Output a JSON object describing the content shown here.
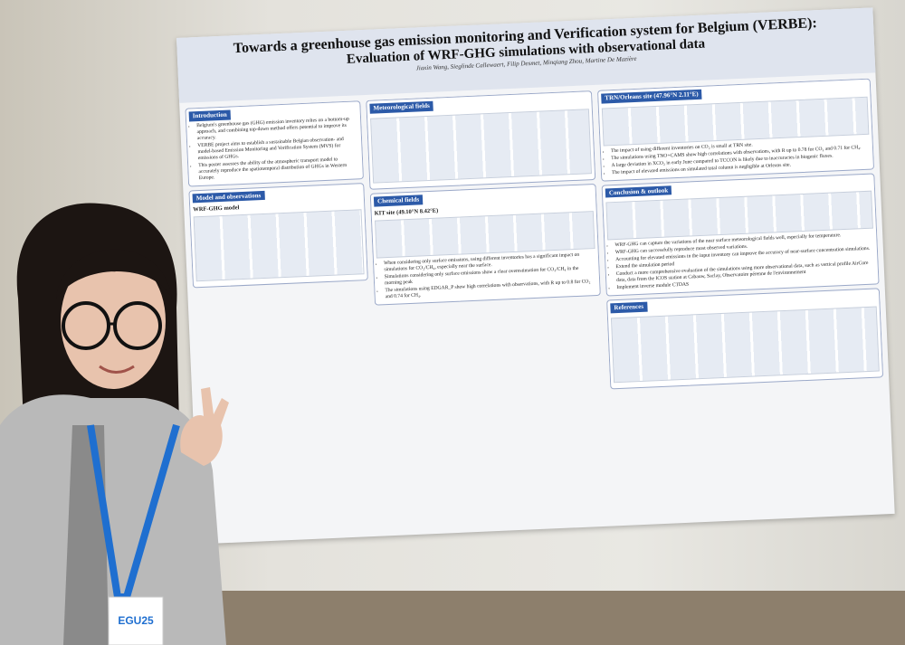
{
  "poster": {
    "title": "Towards a greenhouse gas emission monitoring and Verification system for Belgium (VERBE):",
    "subtitle": "Evaluation of WRF-GHG simulations with observational data",
    "authors": "Jiaxin Wang, Sieglinde Callewaert, Filip Desmet, Minqiang Zhou, Martine De Mazière",
    "left": [
      {
        "heading": "Introduction",
        "bullets": [
          "Belgium's greenhouse gas (GHG) emission inventory relies on a bottom-up approach, and combining top-down method offers potential to improve its accuracy.",
          "VERBE project aims to establish a sustainable Belgian observation- and model-based Emission Monitoring and Verification System (MVS) for emissions of GHGs.",
          "This poster assesses the ability of the atmospheric transport model to accurately reproduce the spatiotemporal distribution of GHGs in Western Europe."
        ]
      },
      {
        "heading": "Model and observations",
        "subheading": "WRF-GHG model",
        "bullets": []
      }
    ],
    "middle": [
      {
        "heading": "Meteorological fields",
        "bullets": []
      },
      {
        "heading": "Chemical fields",
        "subheading": "KIT site (49.10°N 8.42°E)",
        "bullets": [
          "When considering only surface emissions, using different inventories has a significant impact on simulations for CO₂/CH₄, especially near the surface.",
          "Simulations considering only surface emissions show a clear overestimation for CO₂/CH₄ in the morning peak",
          "The simulations using EDGAR_P show high correlations with observations, with R up to 0.8 for CO₂ and 0.74 for CH₄."
        ]
      }
    ],
    "right": [
      {
        "heading": "TRN/Orleans site (47.96°N 2.11°E)",
        "bullets": [
          "The impact of using different inventories on CO₂ is small at TRN site.",
          "The simulations using TNO+CAMS show high correlations with observations, with R up to 0.78 for CO₂ and 0.71 for CH₄.",
          "A large deviation in XCO₂ in early June compared to TCCON is likely due to inaccuracies in biogenic fluxes.",
          "The impact of elevated emissions on simulated total column is negligible at Orleans site."
        ]
      },
      {
        "heading": "Conclusion & outlook",
        "bullets": [
          "WRF-GHG can capture the variations of the near surface meteorological fields well, especially for temperature.",
          "WRF-GHG can successfully reproduce most observed variations.",
          "Accounting for elevated emissions in the input inventory can improve the accuracy of near-surface concentration simulations.",
          "Extend the simulation period",
          "Conduct a more comprehensive evaluation of the simulations using more observational data, such as vertical profile AirCore data, data from the ICOS station at Cabauw, Saclay, Observatoire pérenne de l'environnement",
          "Implement inverse module CTDAS"
        ]
      },
      {
        "heading": "References",
        "bullets": []
      }
    ]
  },
  "badge": {
    "event": "EGU25"
  }
}
